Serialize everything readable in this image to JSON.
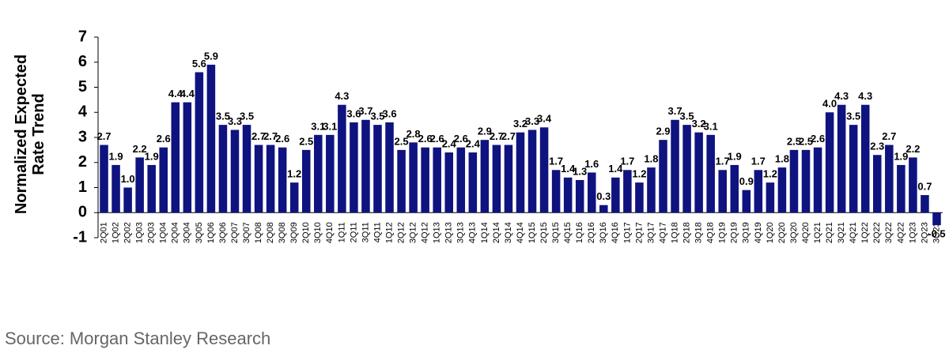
{
  "chart_data": {
    "type": "bar",
    "y_label": "Normalized Expected Rate Trend",
    "source": "Source: Morgan Stanley Research",
    "categories": [
      "2Q01",
      "1Q02",
      "2Q02",
      "1Q03",
      "2Q03",
      "1Q04",
      "2Q04",
      "3Q04",
      "3Q05",
      "1Q06",
      "3Q06",
      "2Q07",
      "3Q07",
      "1Q08",
      "2Q08",
      "3Q08",
      "3Q09",
      "2Q10",
      "3Q10",
      "4Q10",
      "1Q11",
      "2Q11",
      "3Q11",
      "4Q11",
      "1Q12",
      "2Q12",
      "3Q12",
      "4Q12",
      "1Q13",
      "2Q13",
      "3Q13",
      "4Q13",
      "1Q14",
      "2Q14",
      "3Q14",
      "4Q14",
      "1Q15",
      "2Q15",
      "3Q15",
      "4Q15",
      "1Q16",
      "2Q16",
      "3Q16",
      "4Q16",
      "1Q17",
      "2Q17",
      "3Q17",
      "4Q17",
      "1Q18",
      "2Q18",
      "3Q18",
      "4Q18",
      "1Q19",
      "2Q19",
      "3Q19",
      "4Q19",
      "1Q20",
      "2Q20",
      "3Q20",
      "4Q20",
      "1Q21",
      "2Q21",
      "3Q21",
      "4Q21",
      "1Q22",
      "2Q22",
      "3Q22",
      "4Q22",
      "1Q23",
      "2Q23",
      "3Q23"
    ],
    "values": [
      2.7,
      1.9,
      1.0,
      2.2,
      1.9,
      2.6,
      4.4,
      4.4,
      5.6,
      5.9,
      3.5,
      3.3,
      3.5,
      2.7,
      2.7,
      2.6,
      1.2,
      2.5,
      3.1,
      3.1,
      4.3,
      3.6,
      3.7,
      3.5,
      3.6,
      2.5,
      2.8,
      2.6,
      2.6,
      2.4,
      2.6,
      2.4,
      2.9,
      2.7,
      2.7,
      3.2,
      3.3,
      3.4,
      1.7,
      1.4,
      1.3,
      1.6,
      0.3,
      1.4,
      1.7,
      1.2,
      1.8,
      2.9,
      3.7,
      3.5,
      3.2,
      3.1,
      1.7,
      1.9,
      0.9,
      1.7,
      1.2,
      1.8,
      2.5,
      2.5,
      2.6,
      4.0,
      4.3,
      3.5,
      4.3,
      2.3,
      2.7,
      1.9,
      2.2,
      0.7,
      -0.5
    ],
    "value_labels": [
      "2.7",
      "1.9",
      "1.0",
      "2.2",
      "1.9",
      "2.6",
      "4.4",
      "4.4",
      "5.6",
      "5.9",
      "3.5",
      "3.3",
      "3.5",
      "2.7",
      "2.7",
      "2.6",
      "1.2",
      "2.5",
      "3.1",
      "3.1",
      "4.3",
      "3.6",
      "3.7",
      "3.5",
      "3.6",
      "2.5",
      "2.8",
      "2.6",
      "2.6",
      "2.4",
      "2.6",
      "2.4",
      "2.9",
      "2.7",
      "2.7",
      "3.2",
      "3.3",
      "3.4",
      "1.7",
      "1.4",
      "1.3",
      "1.6",
      "0.3",
      "1.4",
      "1.7",
      "1.2",
      "1.8",
      "2.9",
      "3.7",
      "3.5",
      "3.2",
      "3.1",
      "1.7",
      "1.9",
      "0.9",
      "1.7",
      "1.2",
      "1.8",
      "2.5",
      "2.5",
      "2.6",
      "4.0",
      "4.3",
      "3.5",
      "4.3",
      "2.3",
      "2.7",
      "1.9",
      "2.2",
      "0.7",
      "-0.5"
    ],
    "color": "#0f137f",
    "ylim": [
      -1,
      7
    ],
    "yticks": [
      -1,
      0,
      1,
      2,
      3,
      4,
      5,
      6,
      7
    ],
    "grid": false
  }
}
